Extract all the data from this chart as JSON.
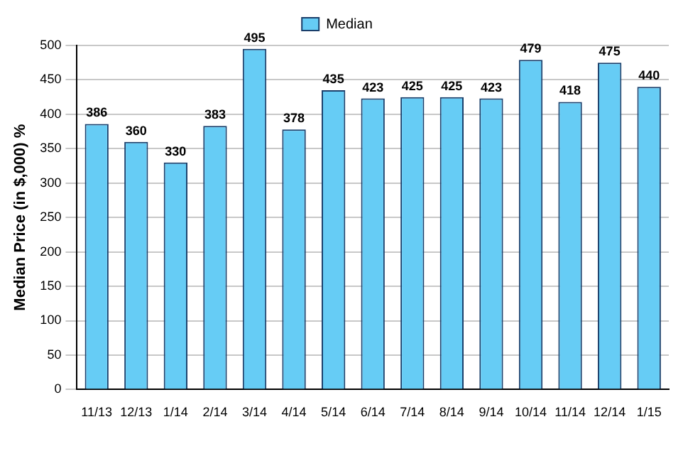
{
  "chart_data": {
    "type": "bar",
    "ylabel": "Median Price (in $,000) %",
    "categories": [
      "11/13",
      "12/13",
      "1/14",
      "2/14",
      "3/14",
      "4/14",
      "5/14",
      "6/14",
      "7/14",
      "8/14",
      "9/14",
      "10/14",
      "11/14",
      "12/14",
      "1/15"
    ],
    "series": [
      {
        "name": "Median",
        "color": "#66ccf5",
        "values": [
          386,
          360,
          330,
          383,
          495,
          378,
          435,
          423,
          425,
          425,
          423,
          479,
          418,
          475,
          440
        ]
      }
    ],
    "ylim": [
      0,
      500
    ],
    "yticks": [
      0,
      50,
      100,
      150,
      200,
      250,
      300,
      350,
      400,
      450,
      500
    ],
    "grid": "y",
    "legend": "top",
    "data_labels": true
  }
}
